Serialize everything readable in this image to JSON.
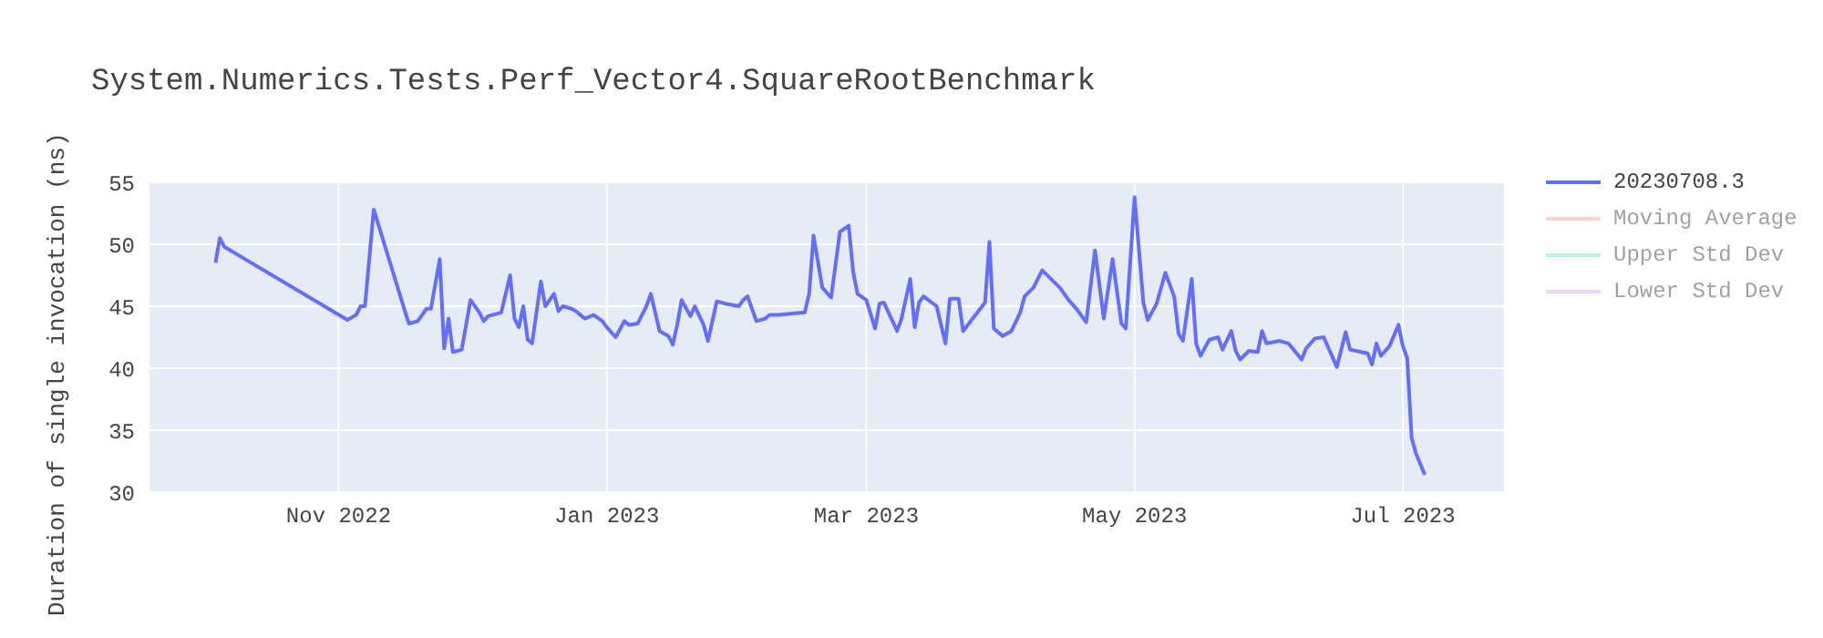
{
  "chart_data": {
    "type": "line",
    "title": "System.Numerics.Tests.Perf_Vector4.SquareRootBenchmark",
    "ylabel": "Duration of single invocation (ns)",
    "x": [
      "2022-10-04",
      "2022-10-05",
      "2022-10-06",
      "2022-11-03",
      "2022-11-05",
      "2022-11-06",
      "2022-11-07",
      "2022-11-09",
      "2022-11-16",
      "2022-11-17",
      "2022-11-19",
      "2022-11-21",
      "2022-11-22",
      "2022-11-24",
      "2022-11-25",
      "2022-11-26",
      "2022-11-27",
      "2022-11-29",
      "2022-12-01",
      "2022-12-03",
      "2022-12-04",
      "2022-12-05",
      "2022-12-08",
      "2022-12-10",
      "2022-12-11",
      "2022-12-12",
      "2022-12-13",
      "2022-12-14",
      "2022-12-15",
      "2022-12-17",
      "2022-12-18",
      "2022-12-20",
      "2022-12-21",
      "2022-12-22",
      "2022-12-24",
      "2022-12-25",
      "2022-12-27",
      "2022-12-29",
      "2022-12-31",
      "2023-01-01",
      "2023-01-03",
      "2023-01-05",
      "2023-01-06",
      "2023-01-08",
      "2023-01-10",
      "2023-01-11",
      "2023-01-12",
      "2023-01-13",
      "2023-01-15",
      "2023-01-16",
      "2023-01-17",
      "2023-01-18",
      "2023-01-20",
      "2023-01-21",
      "2023-01-23",
      "2023-01-24",
      "2023-01-26",
      "2023-01-27",
      "2023-01-28",
      "2023-01-31",
      "2023-02-01",
      "2023-02-02",
      "2023-02-04",
      "2023-02-06",
      "2023-02-07",
      "2023-02-09",
      "2023-02-15",
      "2023-02-16",
      "2023-02-17",
      "2023-02-19",
      "2023-02-21",
      "2023-02-23",
      "2023-02-25",
      "2023-02-26",
      "2023-02-27",
      "2023-03-01",
      "2023-03-03",
      "2023-03-04",
      "2023-03-05",
      "2023-03-08",
      "2023-03-09",
      "2023-03-11",
      "2023-03-12",
      "2023-03-13",
      "2023-03-14",
      "2023-03-17",
      "2023-03-19",
      "2023-03-20",
      "2023-03-22",
      "2023-03-23",
      "2023-03-28",
      "2023-03-29",
      "2023-03-30",
      "2023-04-01",
      "2023-04-03",
      "2023-04-05",
      "2023-04-06",
      "2023-04-08",
      "2023-04-10",
      "2023-04-14",
      "2023-04-16",
      "2023-04-18",
      "2023-04-20",
      "2023-04-22",
      "2023-04-24",
      "2023-04-26",
      "2023-04-28",
      "2023-04-29",
      "2023-05-01",
      "2023-05-03",
      "2023-05-04",
      "2023-05-06",
      "2023-05-08",
      "2023-05-10",
      "2023-05-11",
      "2023-05-12",
      "2023-05-14",
      "2023-05-15",
      "2023-05-16",
      "2023-05-18",
      "2023-05-20",
      "2023-05-21",
      "2023-05-23",
      "2023-05-24",
      "2023-05-25",
      "2023-05-27",
      "2023-05-29",
      "2023-05-30",
      "2023-05-31",
      "2023-06-03",
      "2023-06-05",
      "2023-06-08",
      "2023-06-09",
      "2023-06-11",
      "2023-06-13",
      "2023-06-14",
      "2023-06-16",
      "2023-06-18",
      "2023-06-19",
      "2023-06-23",
      "2023-06-24",
      "2023-06-25",
      "2023-06-26",
      "2023-06-28",
      "2023-06-30",
      "2023-07-01",
      "2023-07-02",
      "2023-07-03",
      "2023-07-04",
      "2023-07-06"
    ],
    "series": [
      {
        "name": "20230708.3",
        "color": "#636efa",
        "values": [
          48.5,
          50.5,
          49.8,
          43.9,
          44.3,
          45,
          45,
          52.8,
          44.7,
          43.6,
          43.8,
          44.8,
          44.8,
          48.8,
          41.6,
          44,
          41.3,
          41.5,
          45.5,
          44.5,
          43.8,
          44.2,
          44.5,
          47.5,
          44,
          43.3,
          45,
          42.3,
          42,
          47,
          45,
          46,
          44.6,
          45,
          44.8,
          44.6,
          44,
          44.3,
          43.8,
          43.3,
          42.5,
          43.8,
          43.5,
          43.6,
          45,
          46,
          44.5,
          43,
          42.6,
          41.9,
          43.5,
          45.5,
          44.2,
          45,
          43.5,
          42.2,
          45.4,
          45.3,
          45.2,
          45,
          45.5,
          45.8,
          43.8,
          44,
          44.3,
          44.3,
          44.5,
          46,
          50.7,
          46.5,
          45.7,
          51,
          51.5,
          47.8,
          46,
          45.5,
          43.2,
          45.2,
          45.3,
          43,
          44,
          47.2,
          43.3,
          45.3,
          45.8,
          45,
          42,
          45.6,
          45.6,
          43,
          45.3,
          50.2,
          43.2,
          42.6,
          43,
          44.5,
          45.8,
          46.5,
          47.9,
          46.5,
          45.5,
          44.7,
          43.7,
          49.5,
          44,
          48.8,
          43.6,
          43.2,
          53.8,
          45.3,
          43.9,
          45.2,
          47.7,
          45.8,
          42.8,
          42.2,
          47.2,
          42,
          41,
          42.3,
          42.5,
          41.5,
          43,
          41.4,
          40.7,
          41.4,
          41.3,
          43,
          42,
          42.2,
          42,
          40.7,
          41.6,
          42.4,
          42.5,
          41.7,
          40.1,
          42.9,
          41.5,
          41.2,
          40.3,
          42,
          41,
          41.8,
          43.5,
          41.8,
          40.8,
          34.4,
          33.1,
          31.4
        ]
      },
      {
        "name": "Moving Average",
        "color": "#f7a998",
        "values": [
          null,
          null,
          null,
          null,
          null,
          null,
          null,
          null,
          null,
          null,
          null,
          null,
          null,
          null,
          null,
          null,
          null,
          null,
          null,
          null,
          null,
          null,
          null,
          null,
          null,
          null,
          null,
          null,
          null,
          null,
          null,
          null,
          null,
          null,
          null,
          null,
          null,
          null,
          null,
          null,
          null,
          null,
          null,
          null,
          null,
          null,
          null,
          null,
          null,
          null,
          null,
          null,
          null,
          null,
          null,
          null,
          null,
          null,
          null,
          null,
          null,
          null,
          null,
          null,
          null,
          null,
          null,
          null,
          null,
          null,
          null,
          null,
          null,
          null,
          null,
          null,
          null,
          null,
          null,
          null,
          null,
          null,
          null,
          null,
          null,
          null,
          null,
          null,
          null,
          null,
          null,
          null,
          null,
          null,
          null,
          null,
          null,
          null,
          null,
          null,
          null,
          null,
          null,
          null,
          null,
          null,
          null,
          null,
          null,
          null,
          null,
          null,
          null,
          null,
          null,
          null,
          null,
          null,
          null,
          null,
          null,
          null,
          null,
          null,
          null,
          null,
          null,
          null,
          null,
          null,
          null,
          null,
          null,
          null,
          null,
          null,
          null,
          null,
          null,
          null,
          null,
          null,
          null,
          null,
          null,
          null,
          null,
          null,
          null,
          null
        ]
      },
      {
        "name": "Upper Std Dev",
        "color": "#7fe5ca",
        "values": [
          null,
          null,
          null,
          null,
          null,
          null,
          null,
          null,
          null,
          null,
          null,
          null,
          null,
          null,
          null,
          null,
          null,
          null,
          null,
          null,
          null,
          null,
          null,
          null,
          null,
          null,
          null,
          null,
          null,
          null,
          null,
          null,
          null,
          null,
          null,
          null,
          null,
          null,
          null,
          null,
          null,
          null,
          null,
          null,
          null,
          null,
          null,
          null,
          null,
          null,
          null,
          null,
          null,
          null,
          null,
          null,
          null,
          null,
          null,
          null,
          null,
          null,
          null,
          null,
          null,
          null,
          null,
          null,
          null,
          null,
          null,
          null,
          null,
          null,
          null,
          null,
          null,
          null,
          null,
          null,
          null,
          null,
          null,
          null,
          null,
          null,
          null,
          null,
          null,
          null,
          null,
          null,
          null,
          null,
          null,
          null,
          null,
          null,
          null,
          null,
          null,
          null,
          null,
          null,
          null,
          null,
          null,
          null,
          null,
          null,
          null,
          null,
          null,
          null,
          null,
          null,
          null,
          null,
          null,
          null,
          null,
          null,
          null,
          null,
          null,
          null,
          null,
          null,
          null,
          null,
          null,
          null,
          null,
          null,
          null,
          null,
          null,
          null,
          null,
          null,
          null,
          null,
          null,
          null,
          null,
          null,
          null,
          null,
          null,
          null
        ]
      },
      {
        "name": "Lower Std Dev",
        "color": "#d5b1fc",
        "values": [
          null,
          null,
          null,
          null,
          null,
          null,
          null,
          null,
          null,
          null,
          null,
          null,
          null,
          null,
          null,
          null,
          null,
          null,
          null,
          null,
          null,
          null,
          null,
          null,
          null,
          null,
          null,
          null,
          null,
          null,
          null,
          null,
          null,
          null,
          null,
          null,
          null,
          null,
          null,
          null,
          null,
          null,
          null,
          null,
          null,
          null,
          null,
          null,
          null,
          null,
          null,
          null,
          null,
          null,
          null,
          null,
          null,
          null,
          null,
          null,
          null,
          null,
          null,
          null,
          null,
          null,
          null,
          null,
          null,
          null,
          null,
          null,
          null,
          null,
          null,
          null,
          null,
          null,
          null,
          null,
          null,
          null,
          null,
          null,
          null,
          null,
          null,
          null,
          null,
          null,
          null,
          null,
          null,
          null,
          null,
          null,
          null,
          null,
          null,
          null,
          null,
          null,
          null,
          null,
          null,
          null,
          null,
          null,
          null,
          null,
          null,
          null,
          null,
          null,
          null,
          null,
          null,
          null,
          null,
          null,
          null,
          null,
          null,
          null,
          null,
          null,
          null,
          null,
          null,
          null,
          null,
          null,
          null,
          null,
          null,
          null,
          null,
          null,
          null,
          null,
          null,
          null,
          null,
          null,
          null,
          null,
          null,
          null,
          null,
          null
        ]
      }
    ],
    "xlim": [
      "2022-09-19",
      "2023-07-24"
    ],
    "xticks": [
      {
        "value": "2022-11-01",
        "label": "Nov 2022"
      },
      {
        "value": "2023-01-01",
        "label": "Jan 2023"
      },
      {
        "value": "2023-03-01",
        "label": "Mar 2023"
      },
      {
        "value": "2023-05-01",
        "label": "May 2023"
      },
      {
        "value": "2023-07-01",
        "label": "Jul 2023"
      }
    ],
    "ylim": [
      30,
      55
    ],
    "yticks": [
      30,
      35,
      40,
      45,
      50,
      55
    ],
    "grid": true,
    "legend": "top right",
    "marker": "none",
    "line_style": "solid"
  }
}
